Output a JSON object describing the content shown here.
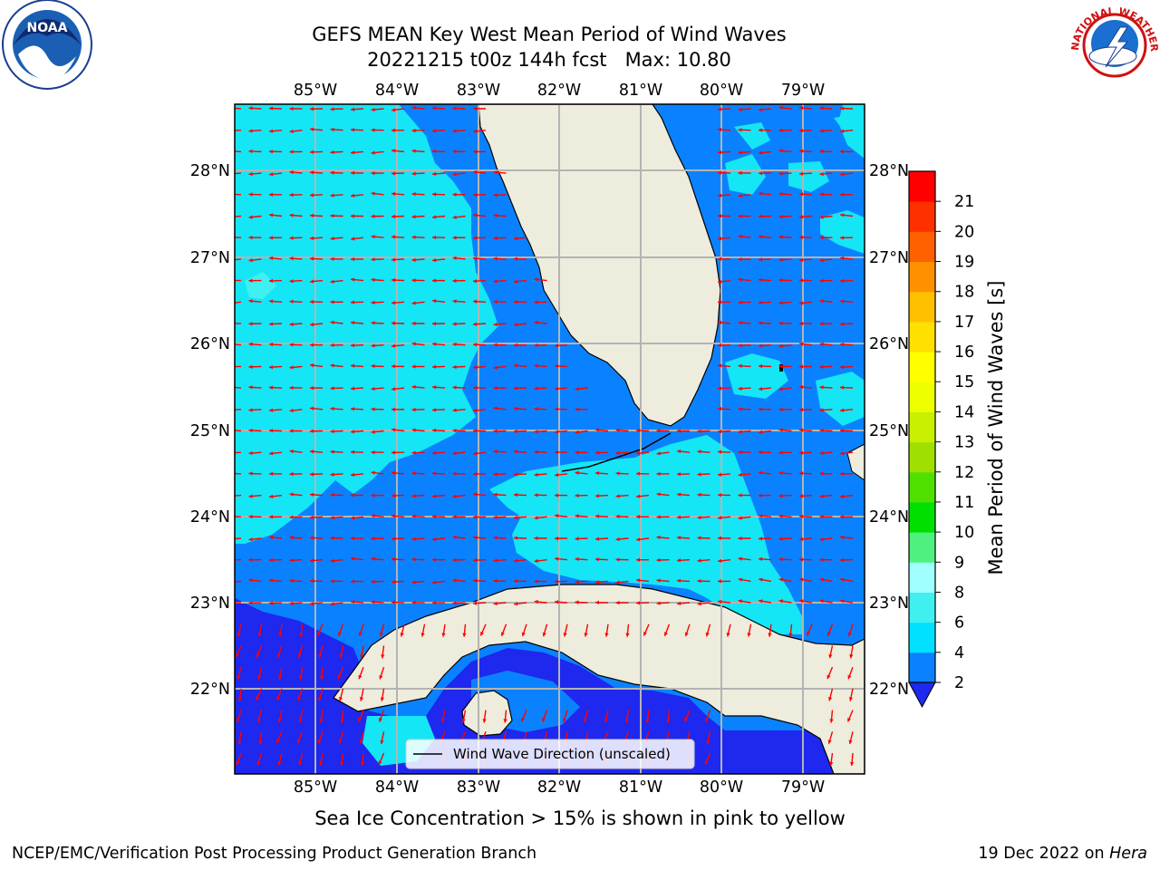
{
  "title": {
    "line1": "GEFS MEAN Key West Mean Period of Wind Waves",
    "line2": "20221215 t00z 144h fcst   Max: 10.80"
  },
  "map": {
    "lon_labels": [
      "85°W",
      "84°W",
      "83°W",
      "82°W",
      "81°W",
      "80°W",
      "79°W"
    ],
    "lat_labels": [
      "28°N",
      "27°N",
      "26°N",
      "25°N",
      "24°N",
      "23°N",
      "22°N"
    ],
    "legend_label": "Wind Wave Direction (unscaled)",
    "colors": {
      "land": "#eeecdc",
      "band_2": "#1e28ee",
      "band_2_4": "#0a82ff",
      "band_4_6": "#14e6f5",
      "grid": "#b4b4b4",
      "arrow": "#ff0000"
    }
  },
  "colorbar": {
    "label": "Mean Period of Wind Waves [s]",
    "ticks": [
      "2",
      "4",
      "6",
      "8",
      "9",
      "10",
      "11",
      "12",
      "13",
      "14",
      "15",
      "16",
      "17",
      "18",
      "19",
      "20",
      "21"
    ],
    "bands": [
      "#0a82ff",
      "#00e0ff",
      "#40f0f0",
      "#a0ffff",
      "#50f080",
      "#00e000",
      "#50e000",
      "#a0e000",
      "#c8f000",
      "#f0ff00",
      "#ffff00",
      "#ffe000",
      "#ffc000",
      "#ff9000",
      "#ff6000",
      "#ff3000",
      "#ff0000"
    ],
    "under_color": "#1e28ee"
  },
  "subtitle": "Sea Ice Concentration > 15% is shown in pink to yellow",
  "footer": {
    "left": "NCEP/EMC/Verification Post Processing Product Generation Branch",
    "right_date": "19 Dec 2022 on ",
    "right_host": "Hera"
  },
  "logos": {
    "noaa_icon": "noaa-logo-icon",
    "noaa_text": "NOAA",
    "nws_icon": "nws-logo-icon",
    "nws_text": "NATIONAL WEATHER SERVICE"
  }
}
